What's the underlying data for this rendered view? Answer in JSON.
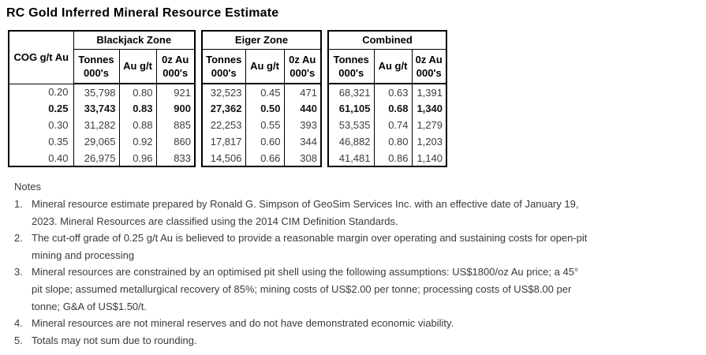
{
  "title": "RC Gold Inferred Mineral Resource Estimate",
  "resource_table": {
    "cog_header": "COG g/t Au",
    "subheaders": {
      "tonnes_l1": "Tonnes",
      "tonnes_l2": "000's",
      "grade": "Au g/t",
      "oz_l1": "0z Au",
      "oz_l2": "000's"
    },
    "cog_values": [
      "0.20",
      "0.25",
      "0.30",
      "0.35",
      "0.40"
    ],
    "bold_row_index": 1,
    "zones": [
      {
        "name": "Blackjack Zone",
        "rows": [
          [
            "35,798",
            "0.80",
            "921"
          ],
          [
            "33,743",
            "0.83",
            "900"
          ],
          [
            "31,282",
            "0.88",
            "885"
          ],
          [
            "29,065",
            "0.92",
            "860"
          ],
          [
            "26,975",
            "0.96",
            "833"
          ]
        ]
      },
      {
        "name": "Eiger Zone",
        "rows": [
          [
            "32,523",
            "0.45",
            "471"
          ],
          [
            "27,362",
            "0.50",
            "440"
          ],
          [
            "22,253",
            "0.55",
            "393"
          ],
          [
            "17,817",
            "0.60",
            "344"
          ],
          [
            "14,506",
            "0.66",
            "308"
          ]
        ]
      },
      {
        "name": "Combined",
        "rows": [
          [
            "68,321",
            "0.63",
            "1,391"
          ],
          [
            "61,105",
            "0.68",
            "1,340"
          ],
          [
            "53,535",
            "0.74",
            "1,279"
          ],
          [
            "46,882",
            "0.80",
            "1,203"
          ],
          [
            "41,481",
            "0.86",
            "1,140"
          ]
        ]
      }
    ]
  },
  "notes": {
    "heading": "Notes",
    "items": [
      {
        "number": "1.",
        "lines": [
          "Mineral resource estimate prepared by Ronald G. Simpson of GeoSim Services Inc. with an effective date of January 19,",
          "2023. Mineral Resources are classified using the 2014 CIM Definition Standards."
        ]
      },
      {
        "number": "2.",
        "lines": [
          "The cut-off grade of 0.25 g/t Au is believed to provide a reasonable margin over operating and sustaining costs for open-pit",
          "mining and processing"
        ]
      },
      {
        "number": "3.",
        "lines": [
          "Mineral resources are constrained by an optimised pit shell using the following assumptions: US$1800/oz Au price; a 45°",
          "pit slope; assumed metallurgical recovery of 85%; mining costs of US$2.00 per tonne; processing costs of US$8.00 per",
          "tonne; G&A of US$1.50/t."
        ]
      },
      {
        "number": "4.",
        "lines": [
          "Mineral resources are not mineral reserves and do not have demonstrated economic viability."
        ]
      },
      {
        "number": "5.",
        "lines": [
          "Totals may not sum due to rounding."
        ]
      }
    ]
  }
}
